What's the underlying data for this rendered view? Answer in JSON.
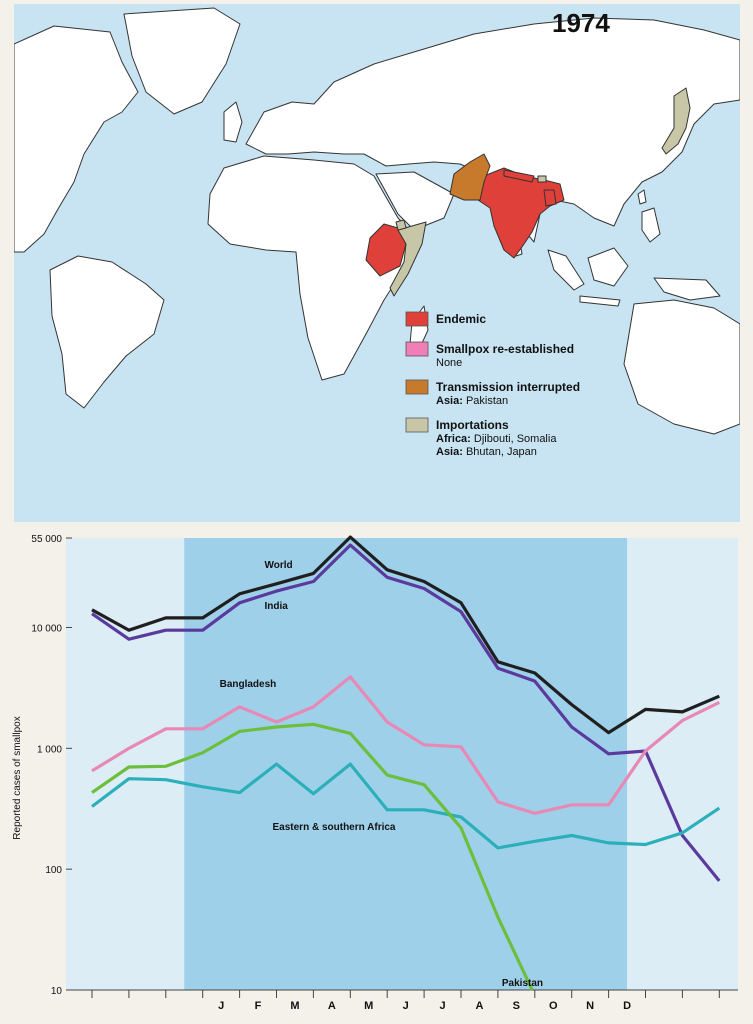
{
  "map": {
    "year": "1974",
    "legend": [
      {
        "id": "endemic",
        "title": "Endemic",
        "details": [],
        "color": "#e0403a"
      },
      {
        "id": "reestablished",
        "title": "Smallpox re-established",
        "details": [
          {
            "bold": "",
            "text": "None"
          }
        ],
        "color": "#ef7fb6"
      },
      {
        "id": "interrupted",
        "title": "Transmission interrupted",
        "details": [
          {
            "bold": "Asia:",
            "text": " Pakistan"
          }
        ],
        "color": "#c77a2c"
      },
      {
        "id": "importations",
        "title": "Importations",
        "details": [
          {
            "bold": "Africa:",
            "text": " Djibouti, Somalia"
          },
          {
            "bold": "Asia:",
            "text": " Bhutan, Japan"
          }
        ],
        "color": "#c7c7a8"
      }
    ],
    "colors": {
      "ocean": "#c8e4f2",
      "land": "#ffffff",
      "border": "#333333"
    }
  },
  "chart_data": {
    "type": "line",
    "ylabel": "Reported cases of smallpox",
    "yscale": "log",
    "ylim": [
      10,
      55000
    ],
    "ytick_labels": [
      "55 000",
      "10 000",
      "1 000",
      "100",
      "10"
    ],
    "ytick_values": [
      55000,
      10000,
      1000,
      100,
      10
    ],
    "x_tick_labels": [
      "",
      "",
      "",
      "J",
      "F",
      "M",
      "A",
      "M",
      "J",
      "J",
      "A",
      "S",
      "O",
      "N",
      "D",
      "",
      "",
      ""
    ],
    "highlight_range": [
      2.5,
      14.5
    ],
    "colors": {
      "background": "#dcedf6",
      "highlight": "#9fd0ea"
    },
    "series": [
      {
        "name": "World",
        "color": "#1f1f1f",
        "label_index": 5,
        "values": [
          14000,
          9500,
          12000,
          12000,
          19000,
          23000,
          28000,
          56000,
          30000,
          24000,
          16000,
          5200,
          4200,
          2300,
          1350,
          2100,
          2000,
          2700
        ]
      },
      {
        "name": "India",
        "color": "#5a3a9c",
        "label_index": 5,
        "values": [
          13000,
          8000,
          9500,
          9500,
          16000,
          20000,
          24000,
          48000,
          26000,
          21000,
          13500,
          4600,
          3600,
          1500,
          900,
          950,
          190,
          80
        ]
      },
      {
        "name": "Bangladesh",
        "color": "#e888b4",
        "label_index": 4,
        "values": [
          650,
          1000,
          1450,
          1450,
          2200,
          1650,
          2200,
          3900,
          1650,
          1070,
          1030,
          360,
          290,
          340,
          340,
          950,
          1700,
          2400
        ]
      },
      {
        "name": "Eastern & southern Africa",
        "color": "#2bb0ba",
        "label_index": 7,
        "values": [
          330,
          560,
          550,
          480,
          430,
          740,
          420,
          740,
          310,
          310,
          270,
          150,
          170,
          190,
          165,
          160,
          200,
          320
        ]
      },
      {
        "name": "Pakistan",
        "color": "#6cbf3c",
        "label_index": 12,
        "values": [
          430,
          700,
          710,
          920,
          1380,
          1500,
          1580,
          1330,
          600,
          500,
          220,
          40,
          9
        ]
      }
    ]
  }
}
